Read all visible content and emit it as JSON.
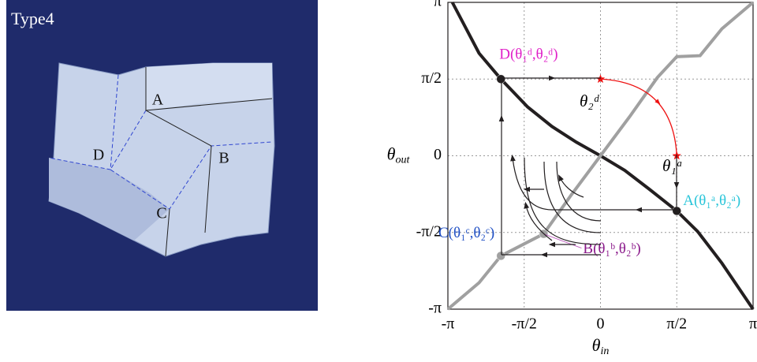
{
  "photo": {
    "title": "Type4",
    "labels": [
      "A",
      "B",
      "C",
      "D"
    ]
  },
  "chart_data": {
    "type": "line",
    "x_label": {
      "symbol": "θ",
      "subscript": "in"
    },
    "y_label": {
      "symbol": "θ",
      "subscript": "out"
    },
    "xlim": [
      -3.1416,
      3.1416
    ],
    "ylim": [
      -3.1416,
      3.1416
    ],
    "xticks": [
      {
        "value": -3.1416,
        "label": "-π"
      },
      {
        "value": -1.5708,
        "label": "-π/2"
      },
      0,
      {
        "value": 1.5708,
        "label": "π/2"
      },
      {
        "value": 3.1416,
        "label": "π"
      }
    ],
    "yticks": [
      {
        "value": -3.1416,
        "label": "-π"
      },
      {
        "value": -1.5708,
        "label": "-π/2"
      },
      0,
      {
        "value": 1.5708,
        "label": "π/2"
      },
      {
        "value": 3.1416,
        "label": "π"
      }
    ],
    "grid": true,
    "series": [
      {
        "color": "#231f20",
        "x": [
          -3.05,
          -2.5,
          -2.05,
          -1.5,
          -1,
          -0.5,
          0,
          0.5,
          1,
          1.5708,
          2,
          2.5,
          3.1416
        ],
        "values": [
          3.1416,
          2.1,
          1.5708,
          1.0,
          0.6,
          0.28,
          0,
          -0.3,
          -0.68,
          -1.13,
          -1.55,
          -2.2,
          -3.1416
        ]
      },
      {
        "color": "#a0a0a0",
        "x": [
          -3.1416,
          -2.5,
          -2.05,
          -1.17,
          -0.6,
          0,
          0.6,
          1.17,
          1.5708,
          2.05,
          2.5,
          3.1416
        ],
        "values": [
          -3.1416,
          -2.6,
          -2.05,
          -1.6,
          -0.8,
          0,
          0.8,
          1.6,
          2.03,
          2.05,
          2.6,
          3.1416
        ]
      }
    ],
    "points": [
      {
        "label": "A(θ₁ᵃ,θ₂ᵃ)",
        "x": 1.5708,
        "y": -1.13,
        "color": "#231f20",
        "label_color": "#29c5d9"
      },
      {
        "label": "B(θ₁ᵇ,θ₂ᵇ)",
        "x": -1.17,
        "y": -1.6,
        "color": "#a0a0a0",
        "label_color": "#8b1a8b"
      },
      {
        "label": "C(θ₁ᶜ,θ₂ᶜ)",
        "x": -2.05,
        "y": -2.05,
        "color": "#a0a0a0",
        "label_color": "#1f4fc4"
      },
      {
        "label": "D(θ₁ᵈ,θ₂ᵈ)",
        "x": -2.05,
        "y": 1.5708,
        "color": "#231f20",
        "label_color": "#e020c8"
      }
    ],
    "markers": {
      "color": "#ee1111",
      "x": [
        0,
        1.5708
      ],
      "values": [
        1.5708,
        0
      ]
    },
    "annotations": [
      "θ₂ᵈ",
      "θ₁ᵃ"
    ]
  }
}
